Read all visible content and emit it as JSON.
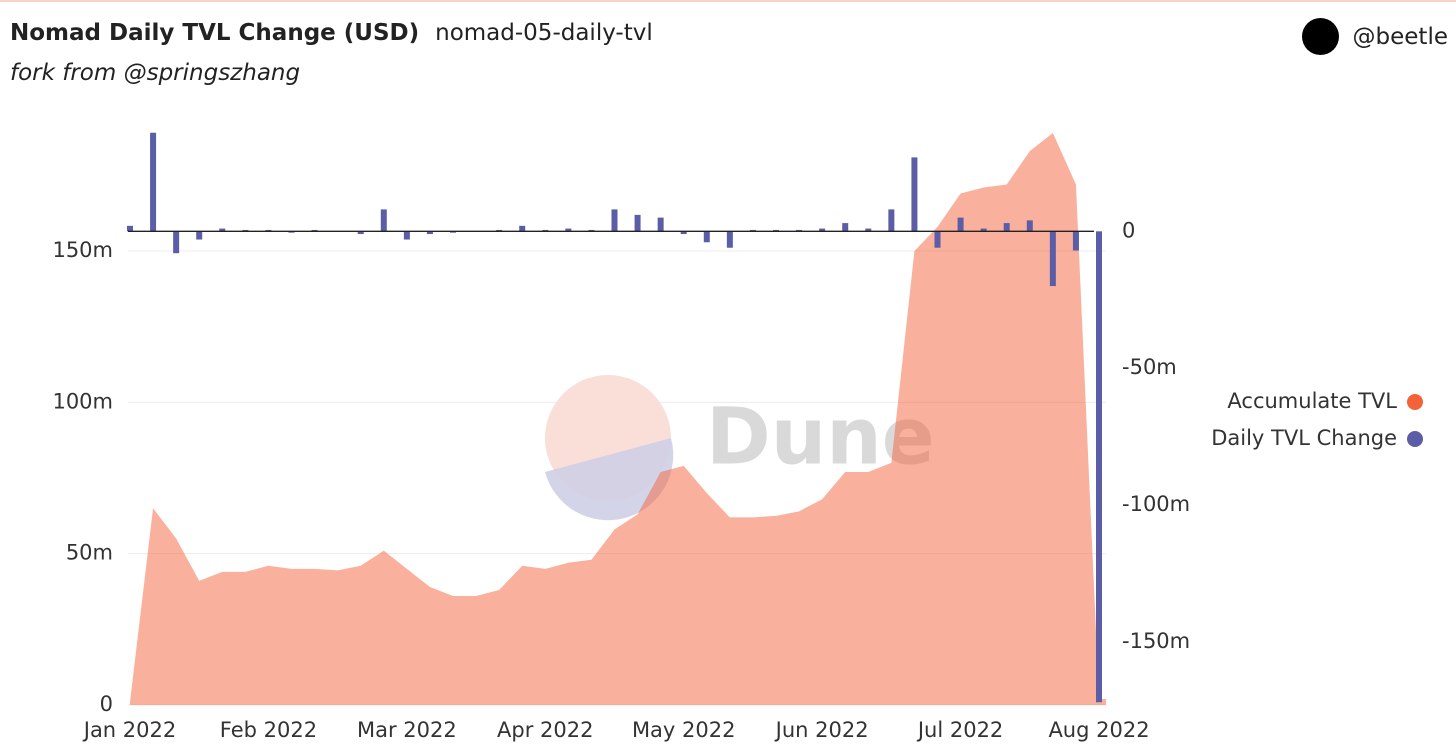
{
  "header": {
    "title": "Nomad Daily TVL Change (USD)",
    "query": "nomad-05-daily-tvl",
    "subtitle": "fork from @springszhang",
    "user": "@beetle"
  },
  "chart_data": {
    "type": "bar-area",
    "watermark": "Dune",
    "categories": [
      "Jan 2022",
      null,
      null,
      null,
      null,
      null,
      "Feb 2022",
      null,
      null,
      null,
      null,
      null,
      "Mar 2022",
      null,
      null,
      null,
      null,
      null,
      "Apr 2022",
      null,
      null,
      null,
      null,
      null,
      "May 2022",
      null,
      null,
      null,
      null,
      null,
      "Jun 2022",
      null,
      null,
      null,
      null,
      null,
      "Jul 2022",
      null,
      null,
      null,
      null,
      null,
      "Aug 2022"
    ],
    "series": [
      {
        "name": "Accumulate TVL",
        "color": "#f4623a",
        "values": [
          1,
          65,
          55,
          41,
          44,
          44,
          46,
          45,
          45,
          44.5,
          46,
          51,
          45,
          39,
          36,
          36,
          38,
          46,
          45,
          47,
          48,
          58,
          63,
          77,
          79,
          70,
          62,
          62,
          62.5,
          64,
          68,
          77,
          77,
          80,
          150,
          158,
          169,
          171,
          172,
          183,
          189,
          172,
          2
        ]
      },
      {
        "name": "Daily TVL Change",
        "color": "#5b5ea6",
        "axis": "y2",
        "values": [
          2,
          36,
          -8,
          -3,
          1,
          0.5,
          0.5,
          -0.5,
          0.5,
          0,
          -1,
          8,
          -3,
          -1,
          -0.5,
          0,
          0.5,
          2,
          0.5,
          1,
          0.5,
          8,
          6,
          5,
          -1,
          -4,
          -6,
          0.5,
          0.5,
          0.5,
          1,
          3,
          1,
          8,
          27,
          -6,
          5,
          1,
          3,
          4,
          -20,
          -7,
          -172
        ]
      }
    ],
    "ylim": [
      0,
      190
    ],
    "yticks": [
      0,
      {
        "value": 50,
        "label": "50m"
      },
      {
        "value": 100,
        "label": "100m"
      },
      {
        "value": 150,
        "label": "150m"
      }
    ],
    "y2lim": [
      -173,
      37
    ],
    "y2ticks": [
      {
        "value": -150,
        "label": "-150m"
      },
      {
        "value": -100,
        "label": "-100m"
      },
      {
        "value": -50,
        "label": "-50m"
      },
      0
    ],
    "grid": true,
    "legend": "right"
  }
}
